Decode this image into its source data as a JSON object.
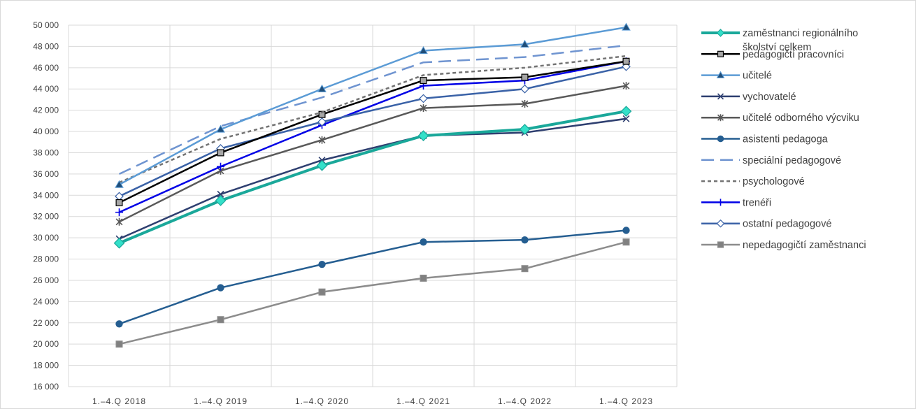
{
  "chart_data": {
    "type": "line",
    "title": "",
    "xlabel": "",
    "ylabel": "",
    "ylim": [
      16000,
      50000
    ],
    "y_tick_step": 2000,
    "y_tick_labels": [
      "16 000",
      "18 000",
      "20 000",
      "22 000",
      "24 000",
      "26 000",
      "28 000",
      "30 000",
      "32 000",
      "34 000",
      "36 000",
      "38 000",
      "40 000",
      "42 000",
      "44 000",
      "46 000",
      "48 000",
      "50 000"
    ],
    "categories": [
      "1.–4.Q 2018",
      "1.–4.Q 2019",
      "1.–4.Q 2020",
      "1.–4.Q 2021",
      "1.–4.Q 2022",
      "1.–4.Q 2023"
    ],
    "grid": "vertical and horizontal",
    "legend_position": "right",
    "series": [
      {
        "name": "zaměstnanci regionálního školství celkem",
        "legend_lines": [
          "zaměstnanci regionálního",
          "školství celkem"
        ],
        "color": "#1aa89a",
        "marker": "diamond",
        "marker_fill": "#33e0c9",
        "dash": "",
        "width": 4,
        "values": [
          29500,
          33500,
          36800,
          39600,
          40200,
          41900
        ]
      },
      {
        "name": "pedagogičtí pracovníci",
        "color": "#000000",
        "marker": "square",
        "marker_fill": "#a6a6a6",
        "dash": "",
        "width": 2.5,
        "values": [
          33300,
          38000,
          41600,
          44800,
          45100,
          46600
        ]
      },
      {
        "name": "učitelé",
        "color": "#5b9bd5",
        "marker": "triangle",
        "marker_fill": "#1f4e79",
        "dash": "",
        "width": 2.5,
        "values": [
          35000,
          40200,
          44000,
          47600,
          48200,
          49800
        ]
      },
      {
        "name": "vychovatelé",
        "color": "#2e3f70",
        "marker": "x",
        "marker_fill": "#2e3f70",
        "dash": "",
        "width": 2.5,
        "values": [
          29900,
          34100,
          37300,
          39600,
          39900,
          41200
        ]
      },
      {
        "name": "učitelé odborného výcviku",
        "color": "#595959",
        "marker": "star",
        "marker_fill": "#595959",
        "dash": "",
        "width": 2.5,
        "values": [
          31500,
          36300,
          39200,
          42200,
          42600,
          44300
        ]
      },
      {
        "name": "asistenti pedagoga",
        "color": "#255e91",
        "marker": "circle",
        "marker_fill": "#255e91",
        "dash": "",
        "width": 2.5,
        "values": [
          21900,
          25300,
          27500,
          29600,
          29800,
          30700
        ]
      },
      {
        "name": "speciální pedagogové",
        "color": "#6f94d0",
        "marker": "none",
        "marker_fill": "",
        "dash": "18,9",
        "width": 2.5,
        "values": [
          36000,
          40500,
          43200,
          46500,
          47000,
          48100
        ]
      },
      {
        "name": "psychologové",
        "color": "#737373",
        "marker": "none",
        "marker_fill": "",
        "dash": "5,4",
        "width": 2.5,
        "values": [
          35200,
          39300,
          41800,
          45300,
          46000,
          47100
        ]
      },
      {
        "name": "trenéři",
        "color": "#0000e6",
        "marker": "plus",
        "marker_fill": "#0000e6",
        "dash": "",
        "width": 2.5,
        "values": [
          32400,
          36700,
          40600,
          44300,
          44800,
          46600
        ]
      },
      {
        "name": "ostatní pedagogové",
        "color": "#3a62a7",
        "marker": "diamond",
        "marker_fill": "#ffffff",
        "dash": "",
        "width": 2.5,
        "values": [
          33900,
          38400,
          40900,
          43100,
          44000,
          46100
        ]
      },
      {
        "name": "nepedagogičtí zaměstnanci",
        "color": "#8c8c8c",
        "marker": "square",
        "marker_fill": "#808080",
        "dash": "",
        "width": 2.5,
        "values": [
          20000,
          22300,
          24900,
          26200,
          27100,
          29600
        ]
      }
    ]
  }
}
